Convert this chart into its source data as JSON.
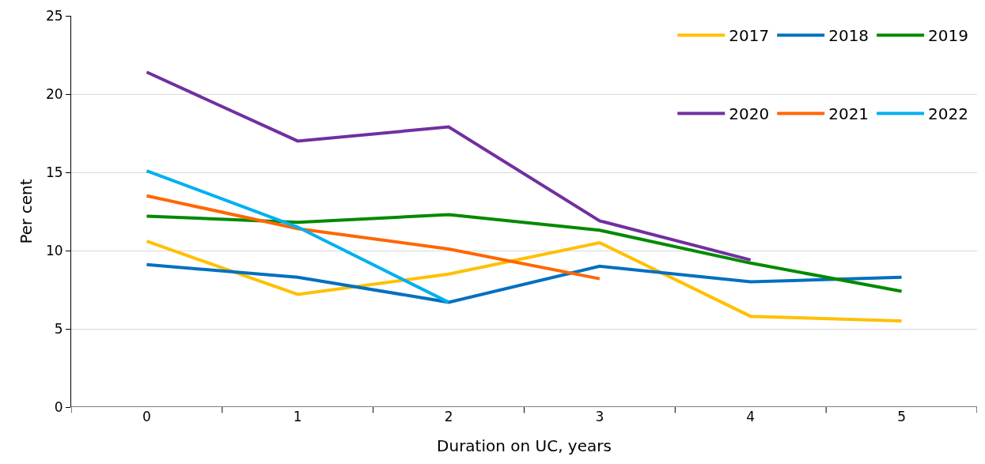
{
  "chart_data": {
    "type": "line",
    "xlabel": "Duration on UC, years",
    "ylabel": "Per cent",
    "categories": [
      "0",
      "1",
      "2",
      "3",
      "4",
      "5"
    ],
    "series": [
      {
        "name": "2017",
        "color": "#ffc000",
        "values": [
          10.6,
          7.2,
          8.5,
          10.5,
          5.8,
          5.5
        ]
      },
      {
        "name": "2018",
        "color": "#0070c0",
        "values": [
          9.1,
          8.3,
          6.7,
          9.0,
          8.0,
          8.3
        ]
      },
      {
        "name": "2019",
        "color": "#008a00",
        "values": [
          12.2,
          11.8,
          12.3,
          11.3,
          9.2,
          7.4
        ]
      },
      {
        "name": "2020",
        "color": "#7030a0",
        "values": [
          21.4,
          17.0,
          17.9,
          11.9,
          9.4,
          null
        ]
      },
      {
        "name": "2021",
        "color": "#ff6600",
        "values": [
          13.5,
          11.4,
          10.1,
          8.2,
          null,
          null
        ]
      },
      {
        "name": "2022",
        "color": "#00b0f0",
        "values": [
          15.1,
          11.5,
          6.7,
          null,
          null,
          null
        ]
      }
    ],
    "ylim": [
      0,
      25
    ],
    "yticks": [
      0,
      5,
      10,
      15,
      20,
      25
    ],
    "grid": "y",
    "legend": "top right",
    "marker": "none",
    "line_style": "solid"
  }
}
